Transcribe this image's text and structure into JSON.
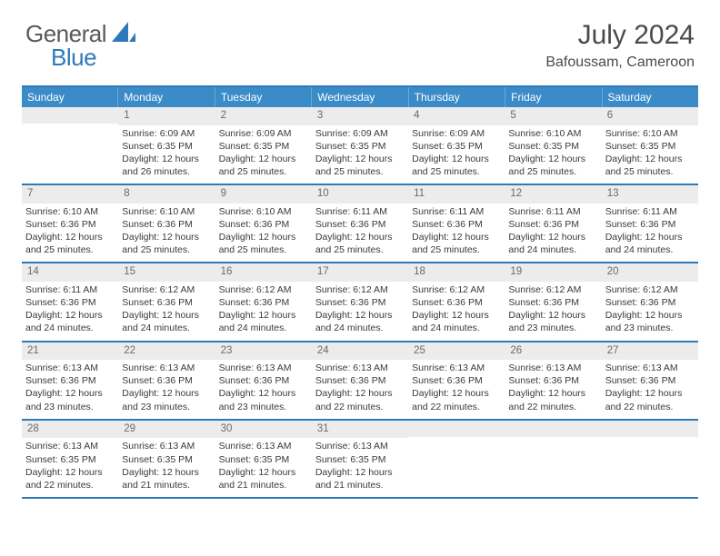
{
  "brand": {
    "part1": "General",
    "part2": "Blue",
    "logo_color": "#2f79b9"
  },
  "title": "July 2024",
  "location": "Bafoussam, Cameroon",
  "colors": {
    "header_bar": "#3b8bc8",
    "header_border": "#2f79b9",
    "daynum_bg": "#ececec",
    "text": "#3a3a3a"
  },
  "days_of_week": [
    "Sunday",
    "Monday",
    "Tuesday",
    "Wednesday",
    "Thursday",
    "Friday",
    "Saturday"
  ],
  "weeks": [
    [
      null,
      {
        "n": "1",
        "sr": "6:09 AM",
        "ss": "6:35 PM",
        "dl": "12 hours and 26 minutes."
      },
      {
        "n": "2",
        "sr": "6:09 AM",
        "ss": "6:35 PM",
        "dl": "12 hours and 25 minutes."
      },
      {
        "n": "3",
        "sr": "6:09 AM",
        "ss": "6:35 PM",
        "dl": "12 hours and 25 minutes."
      },
      {
        "n": "4",
        "sr": "6:09 AM",
        "ss": "6:35 PM",
        "dl": "12 hours and 25 minutes."
      },
      {
        "n": "5",
        "sr": "6:10 AM",
        "ss": "6:35 PM",
        "dl": "12 hours and 25 minutes."
      },
      {
        "n": "6",
        "sr": "6:10 AM",
        "ss": "6:35 PM",
        "dl": "12 hours and 25 minutes."
      }
    ],
    [
      {
        "n": "7",
        "sr": "6:10 AM",
        "ss": "6:36 PM",
        "dl": "12 hours and 25 minutes."
      },
      {
        "n": "8",
        "sr": "6:10 AM",
        "ss": "6:36 PM",
        "dl": "12 hours and 25 minutes."
      },
      {
        "n": "9",
        "sr": "6:10 AM",
        "ss": "6:36 PM",
        "dl": "12 hours and 25 minutes."
      },
      {
        "n": "10",
        "sr": "6:11 AM",
        "ss": "6:36 PM",
        "dl": "12 hours and 25 minutes."
      },
      {
        "n": "11",
        "sr": "6:11 AM",
        "ss": "6:36 PM",
        "dl": "12 hours and 25 minutes."
      },
      {
        "n": "12",
        "sr": "6:11 AM",
        "ss": "6:36 PM",
        "dl": "12 hours and 24 minutes."
      },
      {
        "n": "13",
        "sr": "6:11 AM",
        "ss": "6:36 PM",
        "dl": "12 hours and 24 minutes."
      }
    ],
    [
      {
        "n": "14",
        "sr": "6:11 AM",
        "ss": "6:36 PM",
        "dl": "12 hours and 24 minutes."
      },
      {
        "n": "15",
        "sr": "6:12 AM",
        "ss": "6:36 PM",
        "dl": "12 hours and 24 minutes."
      },
      {
        "n": "16",
        "sr": "6:12 AM",
        "ss": "6:36 PM",
        "dl": "12 hours and 24 minutes."
      },
      {
        "n": "17",
        "sr": "6:12 AM",
        "ss": "6:36 PM",
        "dl": "12 hours and 24 minutes."
      },
      {
        "n": "18",
        "sr": "6:12 AM",
        "ss": "6:36 PM",
        "dl": "12 hours and 24 minutes."
      },
      {
        "n": "19",
        "sr": "6:12 AM",
        "ss": "6:36 PM",
        "dl": "12 hours and 23 minutes."
      },
      {
        "n": "20",
        "sr": "6:12 AM",
        "ss": "6:36 PM",
        "dl": "12 hours and 23 minutes."
      }
    ],
    [
      {
        "n": "21",
        "sr": "6:13 AM",
        "ss": "6:36 PM",
        "dl": "12 hours and 23 minutes."
      },
      {
        "n": "22",
        "sr": "6:13 AM",
        "ss": "6:36 PM",
        "dl": "12 hours and 23 minutes."
      },
      {
        "n": "23",
        "sr": "6:13 AM",
        "ss": "6:36 PM",
        "dl": "12 hours and 23 minutes."
      },
      {
        "n": "24",
        "sr": "6:13 AM",
        "ss": "6:36 PM",
        "dl": "12 hours and 22 minutes."
      },
      {
        "n": "25",
        "sr": "6:13 AM",
        "ss": "6:36 PM",
        "dl": "12 hours and 22 minutes."
      },
      {
        "n": "26",
        "sr": "6:13 AM",
        "ss": "6:36 PM",
        "dl": "12 hours and 22 minutes."
      },
      {
        "n": "27",
        "sr": "6:13 AM",
        "ss": "6:36 PM",
        "dl": "12 hours and 22 minutes."
      }
    ],
    [
      {
        "n": "28",
        "sr": "6:13 AM",
        "ss": "6:35 PM",
        "dl": "12 hours and 22 minutes."
      },
      {
        "n": "29",
        "sr": "6:13 AM",
        "ss": "6:35 PM",
        "dl": "12 hours and 21 minutes."
      },
      {
        "n": "30",
        "sr": "6:13 AM",
        "ss": "6:35 PM",
        "dl": "12 hours and 21 minutes."
      },
      {
        "n": "31",
        "sr": "6:13 AM",
        "ss": "6:35 PM",
        "dl": "12 hours and 21 minutes."
      },
      null,
      null,
      null
    ]
  ],
  "labels": {
    "sunrise": "Sunrise: ",
    "sunset": "Sunset: ",
    "daylight": "Daylight: "
  }
}
